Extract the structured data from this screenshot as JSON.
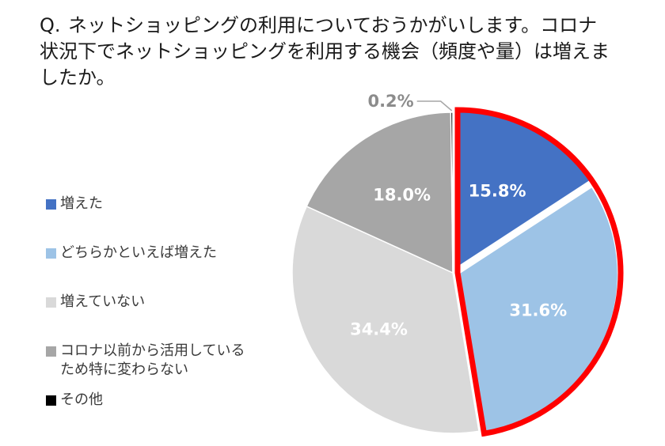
{
  "question": {
    "prefix": "Q.",
    "text": "ネットショッピングの利用についておうかがいします。コロナ状況下でネットショッピングを利用する機会（頻度や量）は増えましたか。"
  },
  "chart_data": {
    "type": "pie",
    "start": "top",
    "direction": "clockwise",
    "highlight": {
      "slices": [
        0,
        1
      ],
      "color": "#ff0000"
    },
    "series": [
      {
        "name": "増えた",
        "value": 15.8,
        "label": "15.8%",
        "color": "#4472c4"
      },
      {
        "name": "どちらかといえば増えた",
        "value": 31.6,
        "label": "31.6%",
        "color": "#9dc3e6"
      },
      {
        "name": "増えていない",
        "value": 34.4,
        "label": "34.4%",
        "color": "#d9d9d9"
      },
      {
        "name": "コロナ以前から活用している\nため特に変わらない",
        "value": 18.0,
        "label": "18.0%",
        "color": "#a6a6a6"
      },
      {
        "name": "その他",
        "value": 0.2,
        "label": "0.2%",
        "color": "#000000"
      }
    ]
  }
}
